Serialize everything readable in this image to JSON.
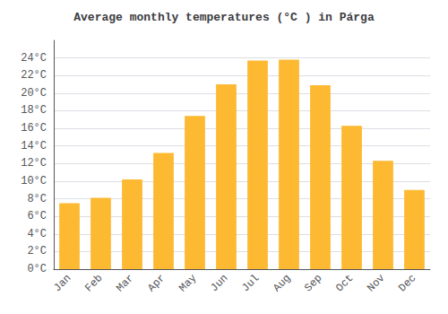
{
  "chart_data": {
    "type": "bar",
    "title": "Average monthly temperatures (°C ) in Párga",
    "categories": [
      "Jan",
      "Feb",
      "Mar",
      "Apr",
      "May",
      "Jun",
      "Jul",
      "Aug",
      "Sep",
      "Oct",
      "Nov",
      "Dec"
    ],
    "values": [
      7.5,
      8.1,
      10.2,
      13.2,
      17.4,
      21.0,
      23.7,
      23.8,
      20.9,
      16.3,
      12.3,
      9.0
    ],
    "color": "#FDB931",
    "ylim": [
      0,
      26
    ],
    "yticks": [
      {
        "value": 0,
        "label": "0°C"
      },
      {
        "value": 2,
        "label": "2°C"
      },
      {
        "value": 4,
        "label": "4°C"
      },
      {
        "value": 6,
        "label": "6°C"
      },
      {
        "value": 8,
        "label": "8°C"
      },
      {
        "value": 10,
        "label": "10°C"
      },
      {
        "value": 12,
        "label": "12°C"
      },
      {
        "value": 14,
        "label": "14°C"
      },
      {
        "value": 16,
        "label": "16°C"
      },
      {
        "value": 18,
        "label": "18°C"
      },
      {
        "value": 20,
        "label": "20°C"
      },
      {
        "value": 22,
        "label": "22°C"
      },
      {
        "value": 24,
        "label": "24°C"
      }
    ],
    "grid": true
  }
}
